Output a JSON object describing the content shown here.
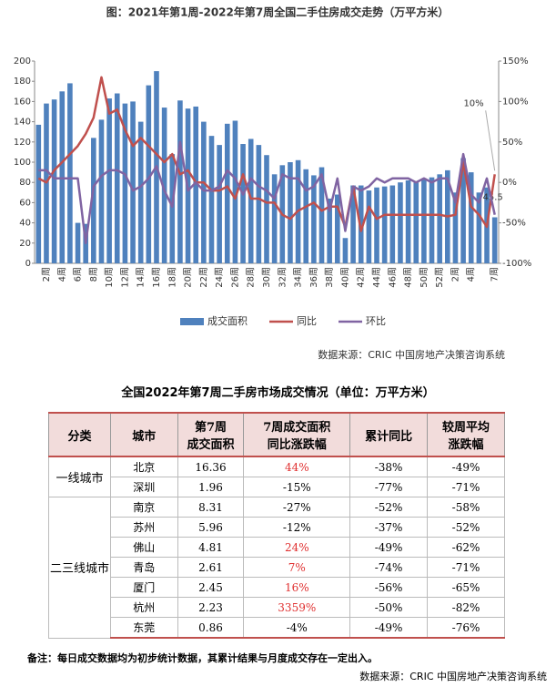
{
  "chart_data": {
    "type": "bar-line",
    "title": "图：2021年第1周-2022年第7周全国二手住房成交走势（万平方米）",
    "categories": [
      null,
      "2周",
      null,
      "4周",
      null,
      "6周",
      null,
      "8周",
      null,
      "10周",
      null,
      "12周",
      null,
      "14周",
      null,
      "16周",
      null,
      "18周",
      null,
      "20周",
      null,
      "22周",
      null,
      "24周",
      null,
      "26周",
      null,
      "28周",
      null,
      "30周",
      null,
      "32周",
      null,
      "34周",
      null,
      "36周",
      null,
      "38周",
      null,
      "40周",
      null,
      "42周",
      null,
      "44周",
      null,
      "46周",
      null,
      "48周",
      null,
      "50周",
      null,
      "52周",
      null,
      "2周",
      null,
      "4周",
      null,
      null,
      "7周"
    ],
    "series": [
      {
        "name": "成交面积",
        "kind": "bar",
        "color": "#4f81bd",
        "values": [
          137,
          158,
          162,
          170,
          178,
          40,
          39,
          124,
          142,
          163,
          168,
          158,
          160,
          140,
          176,
          190,
          154,
          108,
          161,
          153,
          155,
          140,
          126,
          117,
          138,
          141,
          118,
          123,
          117,
          107,
          88,
          97,
          100,
          102,
          93,
          87,
          95,
          64,
          68,
          25,
          77,
          77,
          72,
          75,
          76,
          77,
          80,
          82,
          80,
          84,
          85,
          88,
          92,
          70,
          104,
          90,
          70,
          75,
          45.5
        ],
        "value_labels": [
          null,
          null,
          null,
          null,
          null,
          null,
          null,
          null,
          null,
          null,
          null,
          null,
          null,
          null,
          null,
          null,
          null,
          null,
          null,
          null,
          null,
          null,
          null,
          null,
          null,
          null,
          null,
          null,
          null,
          null,
          null,
          null,
          null,
          null,
          null,
          null,
          null,
          null,
          null,
          null,
          null,
          null,
          null,
          null,
          null,
          null,
          null,
          null,
          null,
          null,
          null,
          null,
          null,
          null,
          null,
          null,
          null,
          null,
          "45.5"
        ]
      },
      {
        "name": "同比",
        "kind": "line",
        "axis": "y2",
        "color": "#c0504d",
        "values": [
          5,
          0,
          15,
          25,
          35,
          45,
          60,
          80,
          130,
          85,
          90,
          65,
          45,
          55,
          45,
          35,
          25,
          35,
          10,
          15,
          0,
          0,
          -10,
          -10,
          -5,
          -20,
          10,
          -20,
          -20,
          -25,
          -25,
          -40,
          -45,
          -35,
          -30,
          -25,
          -35,
          -30,
          -30,
          -55,
          -5,
          -60,
          -30,
          -45,
          -40,
          -40,
          -40,
          -40,
          -40,
          -40,
          -40,
          -40,
          -42,
          -40,
          25,
          -30,
          -40,
          -55,
          10
        ],
        "value_labels": [
          null,
          null,
          null,
          null,
          null,
          null,
          null,
          null,
          null,
          null,
          null,
          null,
          null,
          null,
          null,
          null,
          null,
          null,
          null,
          null,
          null,
          null,
          null,
          null,
          null,
          null,
          null,
          null,
          null,
          null,
          null,
          null,
          null,
          null,
          null,
          null,
          null,
          null,
          null,
          null,
          null,
          null,
          null,
          null,
          null,
          null,
          null,
          null,
          null,
          null,
          null,
          null,
          null,
          null,
          null,
          null,
          null,
          null,
          "10%"
        ]
      },
      {
        "name": "环比",
        "kind": "line",
        "axis": "y2",
        "color": "#8064a2",
        "values": [
          15,
          15,
          5,
          5,
          5,
          5,
          -75,
          -5,
          8,
          15,
          15,
          10,
          -10,
          -5,
          5,
          20,
          -10,
          -30,
          50,
          -10,
          0,
          -10,
          -10,
          -5,
          15,
          5,
          -15,
          5,
          -5,
          -10,
          -20,
          10,
          5,
          5,
          -10,
          -5,
          10,
          -35,
          5,
          -60,
          -5,
          -10,
          -5,
          5,
          0,
          5,
          5,
          5,
          0,
          5,
          0,
          5,
          5,
          -25,
          35,
          -15,
          -25,
          5,
          -40
        ]
      }
    ],
    "ylim": [
      0,
      200
    ],
    "yticks": [
      0,
      20,
      40,
      60,
      80,
      100,
      120,
      140,
      160,
      180,
      200
    ],
    "y2lim": [
      -100,
      150
    ],
    "y2ticks": [
      {
        "value": -100,
        "label": "-100%"
      },
      {
        "value": -50,
        "label": "-50%"
      },
      {
        "value": 0,
        "label": "0%"
      },
      {
        "value": 50,
        "label": "50%"
      },
      {
        "value": 100,
        "label": "100%"
      },
      {
        "value": 150,
        "label": "150%"
      }
    ],
    "legend": "bottom",
    "source": "数据来源：CRIC 中国房地产决策咨询系统"
  },
  "table": {
    "title": "全国2022年第7周二手房市场成交情况（单位：万平方米）",
    "header": [
      [
        "分类"
      ],
      [
        "城市"
      ],
      [
        "第7周",
        "成交面积"
      ],
      [
        "7周成交面积",
        "同比涨跌幅"
      ],
      [
        "累计同比"
      ],
      [
        "较周平均",
        "涨跌幅"
      ]
    ],
    "groups": [
      {
        "name": "一线城市",
        "rows": [
          [
            "北京",
            "16.36",
            "44%",
            "-38%",
            "-49%"
          ],
          [
            "深圳",
            "1.96",
            "-15%",
            "-77%",
            "-71%"
          ]
        ]
      },
      {
        "name": "二三线城市",
        "rows": [
          [
            "南京",
            "8.31",
            "-27%",
            "-52%",
            "-58%"
          ],
          [
            "苏州",
            "5.96",
            "-12%",
            "-37%",
            "-52%"
          ],
          [
            "佛山",
            "4.81",
            "24%",
            "-49%",
            "-62%"
          ],
          [
            "青岛",
            "2.61",
            "7%",
            "-74%",
            "-71%"
          ],
          [
            "厦门",
            "2.45",
            "16%",
            "-56%",
            "-65%"
          ],
          [
            "杭州",
            "2.23",
            "3359%",
            "-50%",
            "-82%"
          ],
          [
            "东莞",
            "0.86",
            "-4%",
            "-49%",
            "-76%"
          ]
        ]
      }
    ]
  },
  "note": "备注：每日成交数据均为初步统计数据，其累计结果与月度成交存在一定出入。",
  "source": "数据来源：CRIC 中国房地产决策咨询系统"
}
